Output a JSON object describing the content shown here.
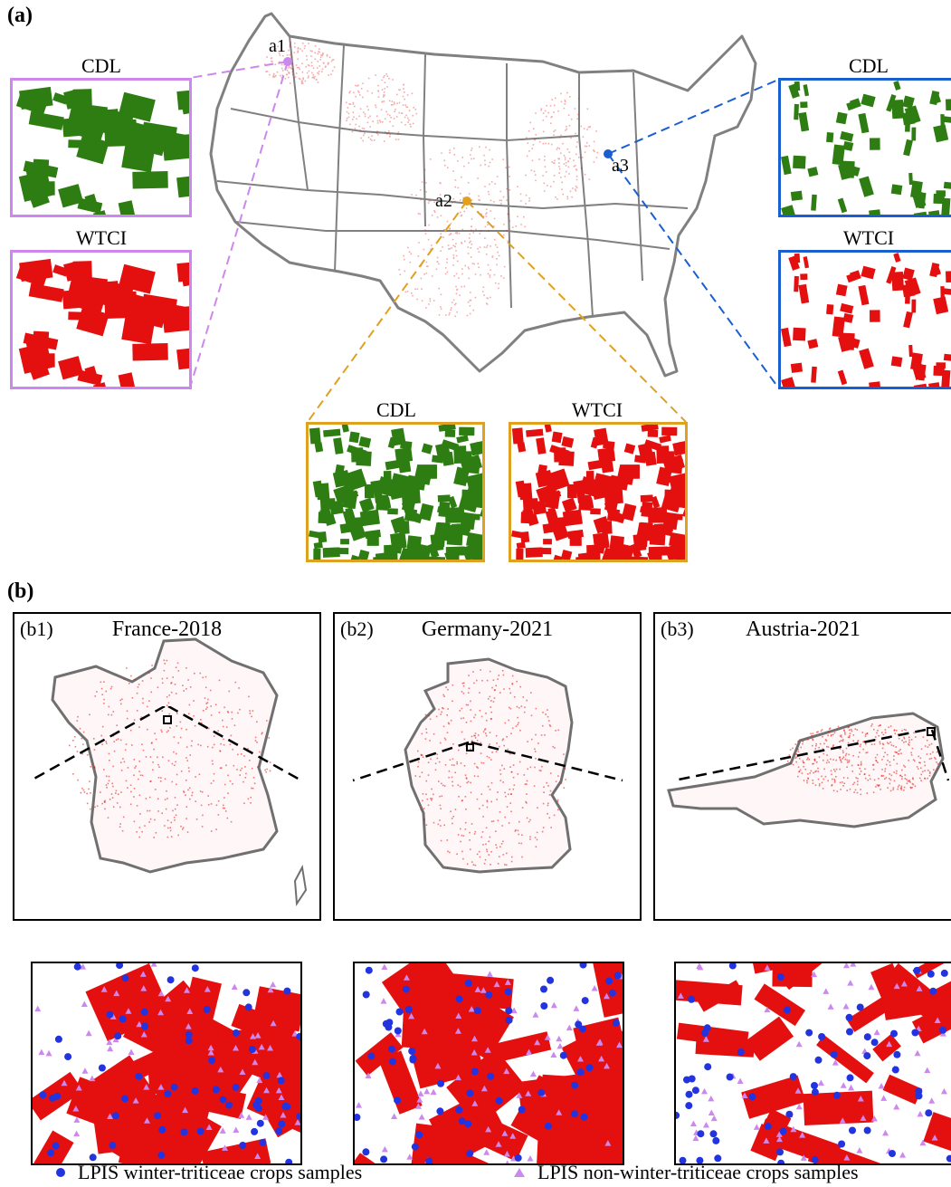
{
  "panel_a": {
    "letter": "(a)",
    "sites": [
      {
        "id": "a1",
        "label": "a1",
        "color": "#cc88ee"
      },
      {
        "id": "a2",
        "label": "a2",
        "color": "#e0a020"
      },
      {
        "id": "a3",
        "label": "a3",
        "color": "#1a5fd0"
      }
    ],
    "cdl_label": "CDL",
    "wtci_label": "WTCI",
    "cdl_color": "#2e7d12",
    "wtci_color": "#e41010"
  },
  "panel_b": {
    "letter": "(b)",
    "maps": [
      {
        "tag": "(b1)",
        "title": "France-2018"
      },
      {
        "tag": "(b2)",
        "title": "Germany-2021"
      },
      {
        "tag": "(b3)",
        "title": "Austria-2021"
      }
    ],
    "legend": {
      "winter": "LPIS winter-triticeae crops samples",
      "non_winter": "LPIS non-winter-triticeae crops samples",
      "winter_color": "#2233e0",
      "non_winter_color": "#cc88ee"
    }
  }
}
